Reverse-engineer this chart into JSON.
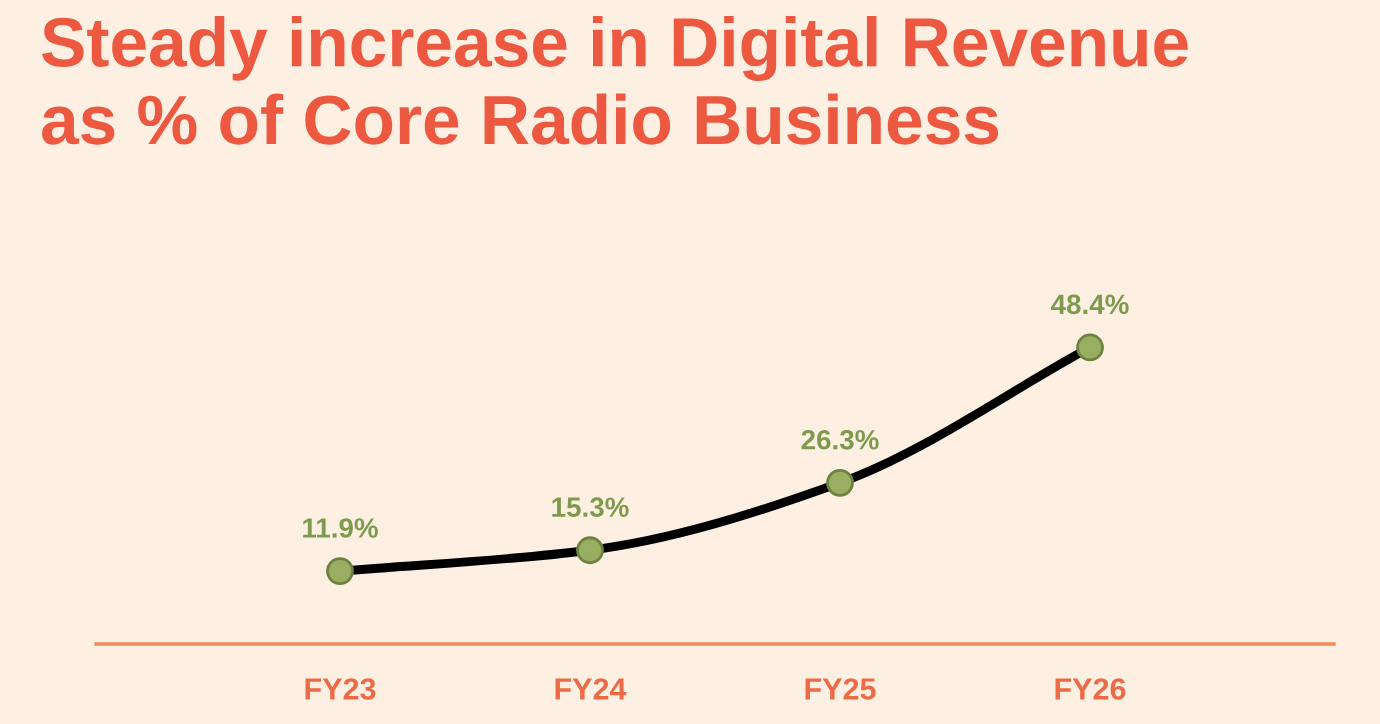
{
  "chart_data": {
    "type": "line",
    "title": "Steady increase in Digital Revenue\nas % of Core Radio Business",
    "categories": [
      "FY23",
      "FY24",
      "FY25",
      "FY26"
    ],
    "series": [
      {
        "color": "#000000",
        "values": [
          11.9,
          15.3,
          26.3,
          48.4
        ],
        "value_labels": [
          "11.9%",
          "15.3%",
          "26.3%",
          "48.4%"
        ]
      }
    ],
    "marker": "circle",
    "line_style": "solid",
    "grid": false,
    "legend": false,
    "tick_labels": "x"
  }
}
